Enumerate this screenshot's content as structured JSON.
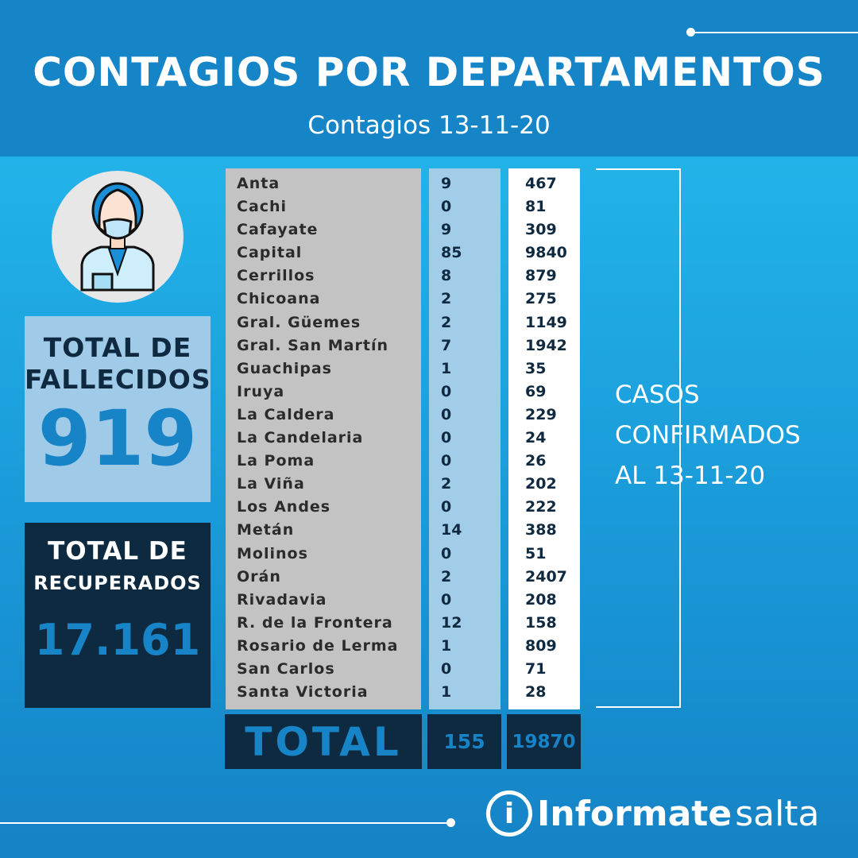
{
  "header": {
    "title": "CONTAGIOS POR DEPARTAMENTOS",
    "subtitle": "Contagios 13-11-20"
  },
  "fallecidos": {
    "label1": "TOTAL DE",
    "label2": "FALLECIDOS",
    "value": "919"
  },
  "recuperados": {
    "label1": "TOTAL DE",
    "label2": "RECUPERADOS",
    "value": "17.161"
  },
  "table": {
    "rows": [
      {
        "name": "Anta",
        "new": "9",
        "total": "467"
      },
      {
        "name": "Cachi",
        "new": "0",
        "total": "81"
      },
      {
        "name": "Cafayate",
        "new": "9",
        "total": "309"
      },
      {
        "name": "Capital",
        "new": "85",
        "total": "9840"
      },
      {
        "name": "Cerrillos",
        "new": "8",
        "total": "879"
      },
      {
        "name": "Chicoana",
        "new": "2",
        "total": "275"
      },
      {
        "name": "Gral. Güemes",
        "new": "2",
        "total": "1149"
      },
      {
        "name": "Gral. San Martín",
        "new": "7",
        "total": "1942"
      },
      {
        "name": "Guachipas",
        "new": "1",
        "total": "35"
      },
      {
        "name": "Iruya",
        "new": "0",
        "total": "69"
      },
      {
        "name": "La Caldera",
        "new": "0",
        "total": "229"
      },
      {
        "name": "La Candelaria",
        "new": "0",
        "total": "24"
      },
      {
        "name": "La Poma",
        "new": "0",
        "total": "26"
      },
      {
        "name": "La Viña",
        "new": "2",
        "total": "202"
      },
      {
        "name": "Los Andes",
        "new": "0",
        "total": "222"
      },
      {
        "name": "Metán",
        "new": "14",
        "total": "388"
      },
      {
        "name": "Molinos",
        "new": "0",
        "total": "51"
      },
      {
        "name": "Orán",
        "new": "2",
        "total": "2407"
      },
      {
        "name": "Rivadavia",
        "new": "0",
        "total": "208"
      },
      {
        "name": "R. de la Frontera",
        "new": "12",
        "total": "158"
      },
      {
        "name": "Rosario de Lerma",
        "new": "1",
        "total": "809"
      },
      {
        "name": "San Carlos",
        "new": "0",
        "total": "71"
      },
      {
        "name": "Santa Victoria",
        "new": "1",
        "total": "28"
      }
    ],
    "total_label": "TOTAL",
    "total_new": "155",
    "total_total": "19870"
  },
  "casos": {
    "line1": "CASOS",
    "line2": "CONFIRMADOS",
    "line3": "AL 13-11-20"
  },
  "logo": {
    "bold": "Informate",
    "light": "salta",
    "icon": "info-icon"
  },
  "colors": {
    "header": "#1585c8",
    "accent": "#1784c8",
    "dark": "#0e2a40",
    "light_blue": "#a0cbe8"
  }
}
